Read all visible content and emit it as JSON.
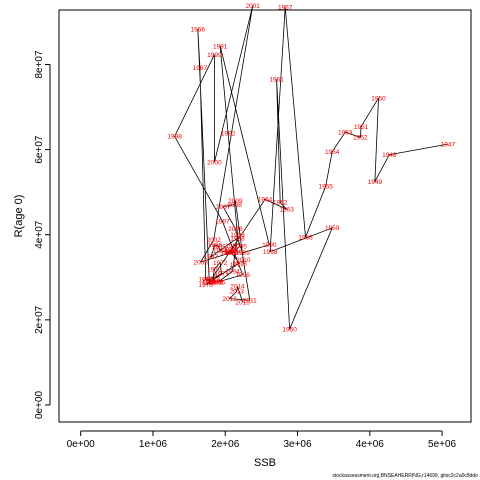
{
  "chart_data": {
    "type": "scatter",
    "xlabel": "SSB",
    "ylabel": "R(age 0)",
    "xlim": [
      -300000,
      5400000
    ],
    "ylim": [
      -4000000,
      92800000
    ],
    "xticks": [
      0,
      1000000,
      2000000,
      3000000,
      4000000,
      5000000
    ],
    "xtick_labels": [
      "0e+00",
      "1e+06",
      "2e+06",
      "3e+06",
      "4e+06",
      "5e+06"
    ],
    "yticks": [
      0,
      20000000,
      40000000,
      60000000,
      80000000
    ],
    "ytick_labels": [
      "0e+00",
      "2e+07",
      "4e+07",
      "6e+07",
      "8e+07"
    ],
    "grid": false,
    "label_color": "#ff0000",
    "line_color": "#000000",
    "points": [
      {
        "year": "1947",
        "x": 5080000,
        "y": 61300000
      },
      {
        "year": "1948",
        "x": 4270000,
        "y": 58800000
      },
      {
        "year": "1949",
        "x": 4070000,
        "y": 52500000
      },
      {
        "year": "1950",
        "x": 4120000,
        "y": 72100000
      },
      {
        "year": "1951",
        "x": 3880000,
        "y": 65400000
      },
      {
        "year": "1952",
        "x": 3870000,
        "y": 62900000
      },
      {
        "year": "1953",
        "x": 3660000,
        "y": 64100000
      },
      {
        "year": "1954",
        "x": 3480000,
        "y": 59500000
      },
      {
        "year": "1955",
        "x": 3390000,
        "y": 51400000
      },
      {
        "year": "1956",
        "x": 3110000,
        "y": 39400000
      },
      {
        "year": "1957",
        "x": 2830000,
        "y": 93400000
      },
      {
        "year": "1958",
        "x": 2620000,
        "y": 36000000
      },
      {
        "year": "1959",
        "x": 3480000,
        "y": 41600000
      },
      {
        "year": "1960",
        "x": 2890000,
        "y": 17800000
      },
      {
        "year": "1961",
        "x": 2710000,
        "y": 76500000
      },
      {
        "year": "1962",
        "x": 2760000,
        "y": 47600000
      },
      {
        "year": "1963",
        "x": 2850000,
        "y": 46000000
      },
      {
        "year": "1964",
        "x": 2550000,
        "y": 48300000
      },
      {
        "year": "1965",
        "x": 1780000,
        "y": 28800000
      },
      {
        "year": "1966",
        "x": 1620000,
        "y": 88300000
      },
      {
        "year": "1967",
        "x": 1650000,
        "y": 79300000
      },
      {
        "year": "1968",
        "x": 1730000,
        "y": 29600000
      },
      {
        "year": "1969",
        "x": 1870000,
        "y": 29000000
      },
      {
        "year": "1970",
        "x": 1770000,
        "y": 29200000
      },
      {
        "year": "1971",
        "x": 1950000,
        "y": 30800000
      },
      {
        "year": "1972",
        "x": 1930000,
        "y": 33400000
      },
      {
        "year": "1973",
        "x": 1850000,
        "y": 31900000
      },
      {
        "year": "1974",
        "x": 1830000,
        "y": 29700000
      },
      {
        "year": "1975",
        "x": 1870000,
        "y": 28900000
      },
      {
        "year": "1976",
        "x": 1730000,
        "y": 28300000
      },
      {
        "year": "1977",
        "x": 2160000,
        "y": 33000000
      },
      {
        "year": "1978",
        "x": 2200000,
        "y": 33300000
      },
      {
        "year": "1979",
        "x": 2080000,
        "y": 35800000
      },
      {
        "year": "1980",
        "x": 2100000,
        "y": 37400000
      },
      {
        "year": "1981",
        "x": 2090000,
        "y": 36500000
      },
      {
        "year": "1982",
        "x": 2080000,
        "y": 36100000
      },
      {
        "year": "1983",
        "x": 2040000,
        "y": 35800000
      },
      {
        "year": "1984",
        "x": 1930000,
        "y": 36300000
      },
      {
        "year": "1985",
        "x": 1910000,
        "y": 37200000
      },
      {
        "year": "1986",
        "x": 1860000,
        "y": 37600000
      },
      {
        "year": "1987",
        "x": 1800000,
        "y": 34800000
      },
      {
        "year": "1988",
        "x": 2170000,
        "y": 39200000
      },
      {
        "year": "1989",
        "x": 2240000,
        "y": 35800000
      },
      {
        "year": "1990",
        "x": 2610000,
        "y": 37600000
      },
      {
        "year": "1991",
        "x": 1930000,
        "y": 84300000
      },
      {
        "year": "1992",
        "x": 2040000,
        "y": 63800000
      },
      {
        "year": "1993",
        "x": 2170000,
        "y": 40000000
      },
      {
        "year": "1994",
        "x": 2100000,
        "y": 31400000
      },
      {
        "year": "1995",
        "x": 1900000,
        "y": 28900000
      },
      {
        "year": "1996",
        "x": 2240000,
        "y": 30600000
      },
      {
        "year": "1997",
        "x": 1960000,
        "y": 43200000
      },
      {
        "year": "1998",
        "x": 1300000,
        "y": 63100000
      },
      {
        "year": "1999",
        "x": 1850000,
        "y": 82300000
      },
      {
        "year": "2000",
        "x": 1850000,
        "y": 57000000
      },
      {
        "year": "2001",
        "x": 2380000,
        "y": 93800000
      },
      {
        "year": "2002",
        "x": 1840000,
        "y": 38800000
      },
      {
        "year": "2003",
        "x": 1660000,
        "y": 33600000
      },
      {
        "year": "2004",
        "x": 2120000,
        "y": 36000000
      },
      {
        "year": "2005",
        "x": 2200000,
        "y": 37300000
      },
      {
        "year": "2006",
        "x": 2140000,
        "y": 41400000
      },
      {
        "year": "2007",
        "x": 1970000,
        "y": 46600000
      },
      {
        "year": "2008",
        "x": 2130000,
        "y": 47100000
      },
      {
        "year": "2009",
        "x": 2140000,
        "y": 48000000
      },
      {
        "year": "2010",
        "x": 2250000,
        "y": 34100000
      },
      {
        "year": "2011",
        "x": 2340000,
        "y": 24600000
      },
      {
        "year": "2012",
        "x": 2060000,
        "y": 25000000
      },
      {
        "year": "2013",
        "x": 2160000,
        "y": 26700000
      },
      {
        "year": "2014",
        "x": 2170000,
        "y": 27900000
      },
      {
        "year": "2015",
        "x": 2240000,
        "y": 24200000
      }
    ]
  },
  "footer_text": "stockassessment.org,BNSEAHERRING,r14699, gitsc2c2a0c8dde"
}
